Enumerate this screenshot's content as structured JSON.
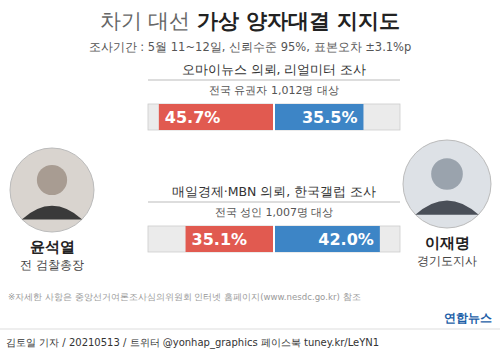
{
  "header": {
    "title_parts": [
      "차기 대선",
      "가상 양자대결 지지도"
    ],
    "subtitle": "조사기간 : 5월 11~12일, 신뢰수준 95%, 표본오차 ±3.1%p"
  },
  "chart_data": {
    "type": "bar",
    "orientation": "horizontal",
    "categories": [
      "오마이뉴스 의뢰, 리얼미터 조사",
      "매일경제·MBN 의뢰, 한국갤럽 조사"
    ],
    "category_notes": [
      "전국 유권자 1,012명 대상",
      "전국 성인 1,007명 대상"
    ],
    "series": [
      {
        "name": "윤석열",
        "color": "#e15a50",
        "values": [
          45.7,
          35.1
        ],
        "value_labels": [
          "45.7%",
          "35.1%"
        ]
      },
      {
        "name": "이재명",
        "color": "#3d85c6",
        "values": [
          35.5,
          42.0
        ],
        "value_labels": [
          "35.5%",
          "42.0%"
        ]
      }
    ],
    "xlim": [
      0,
      50
    ],
    "data_labels": true
  },
  "candidate_roles": [
    "전 검찰총장",
    "경기도지사"
  ],
  "footer": {
    "note": "※자세한 사항은 중앙선거여론조사심의위원회 인터넷 홈페이지(www.nesdc.go.kr) 참조",
    "logo": "연합뉴스",
    "byline": "김토일 기자 / 20210513 / 트위터 @yonhap_graphics  페이스북 tuney.kr/LeYN1"
  }
}
